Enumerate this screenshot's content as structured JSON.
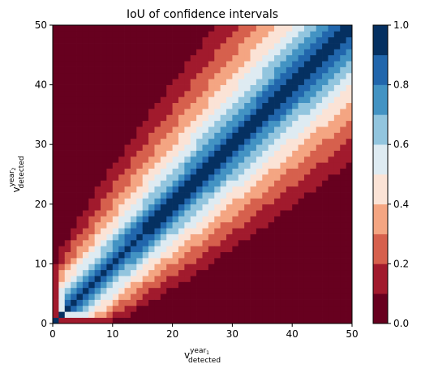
{
  "chart_data": {
    "type": "heatmap",
    "title": "IoU of confidence intervals",
    "xlabel": {
      "base": "v",
      "sup": "year",
      "sup_sub": "1",
      "sub": "detected"
    },
    "ylabel": {
      "base": "v",
      "sup": "year",
      "sup_sub": "2",
      "sub": "detected"
    },
    "xlim": [
      0,
      50
    ],
    "ylim": [
      0,
      50
    ],
    "x_ticks": [
      0,
      10,
      20,
      30,
      40,
      50
    ],
    "y_ticks": [
      0,
      10,
      20,
      30,
      40,
      50
    ],
    "grid": "off",
    "cells_per_axis": 50,
    "description_rule": "IoU is 1.0 along the diagonal (x = y), decreasing away from it; very low values (0.0–0.2) where the smaller count is 0–1.",
    "colorbar": {
      "min": 0.0,
      "max": 1.0,
      "ticks": [
        0.0,
        0.2,
        0.4,
        0.6,
        0.8,
        1.0
      ],
      "tick_labels": [
        "0.0",
        "0.2",
        "0.4",
        "0.6",
        "0.8",
        "1.0"
      ],
      "levels": 10,
      "colors": [
        "#67001f",
        "#a11a2d",
        "#d6604d",
        "#f4a582",
        "#fbe3d6",
        "#deebf2",
        "#92c5de",
        "#4393c3",
        "#2166ac",
        "#053061"
      ]
    }
  }
}
